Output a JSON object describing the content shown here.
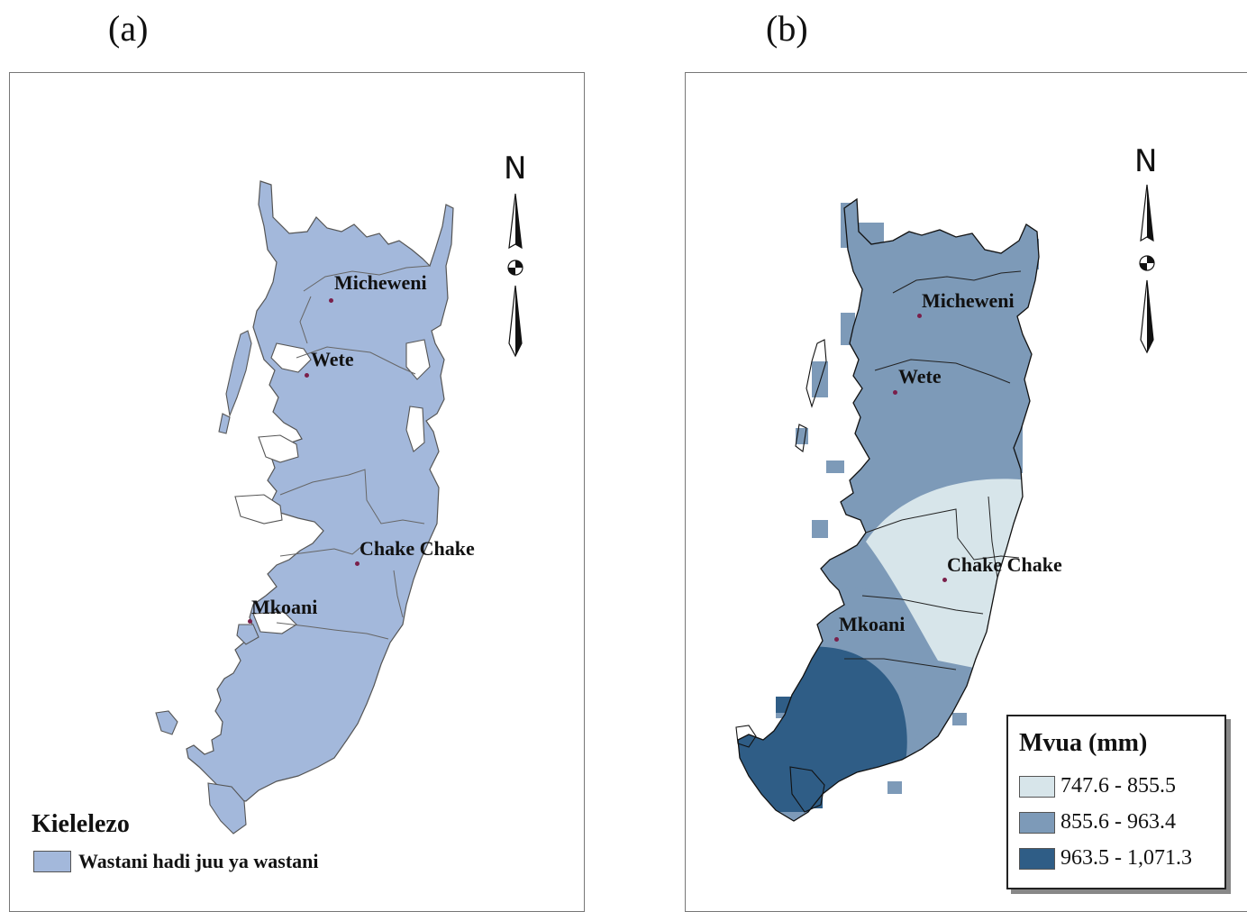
{
  "panels": {
    "a": {
      "letter": "(a)",
      "north": "N",
      "places": [
        "Micheweni",
        "Wete",
        "Chake Chake",
        "Mkoani"
      ],
      "legend": {
        "title": "Kielelezo",
        "items": [
          {
            "label": "Wastani hadi juu ya wastani",
            "color": "#a3b8db"
          }
        ]
      }
    },
    "b": {
      "letter": "(b)",
      "north": "N",
      "places": [
        "Micheweni",
        "Wete",
        "Chake Chake",
        "Mkoani"
      ],
      "legend": {
        "title": "Mvua (mm)",
        "items": [
          {
            "label": "747.6 - 855.5",
            "color": "#d7e5ea"
          },
          {
            "label": "855.6 - 963.4",
            "color": "#7d9ab8"
          },
          {
            "label": "963.5 - 1,071.3",
            "color": "#2f5d86"
          }
        ]
      }
    }
  }
}
